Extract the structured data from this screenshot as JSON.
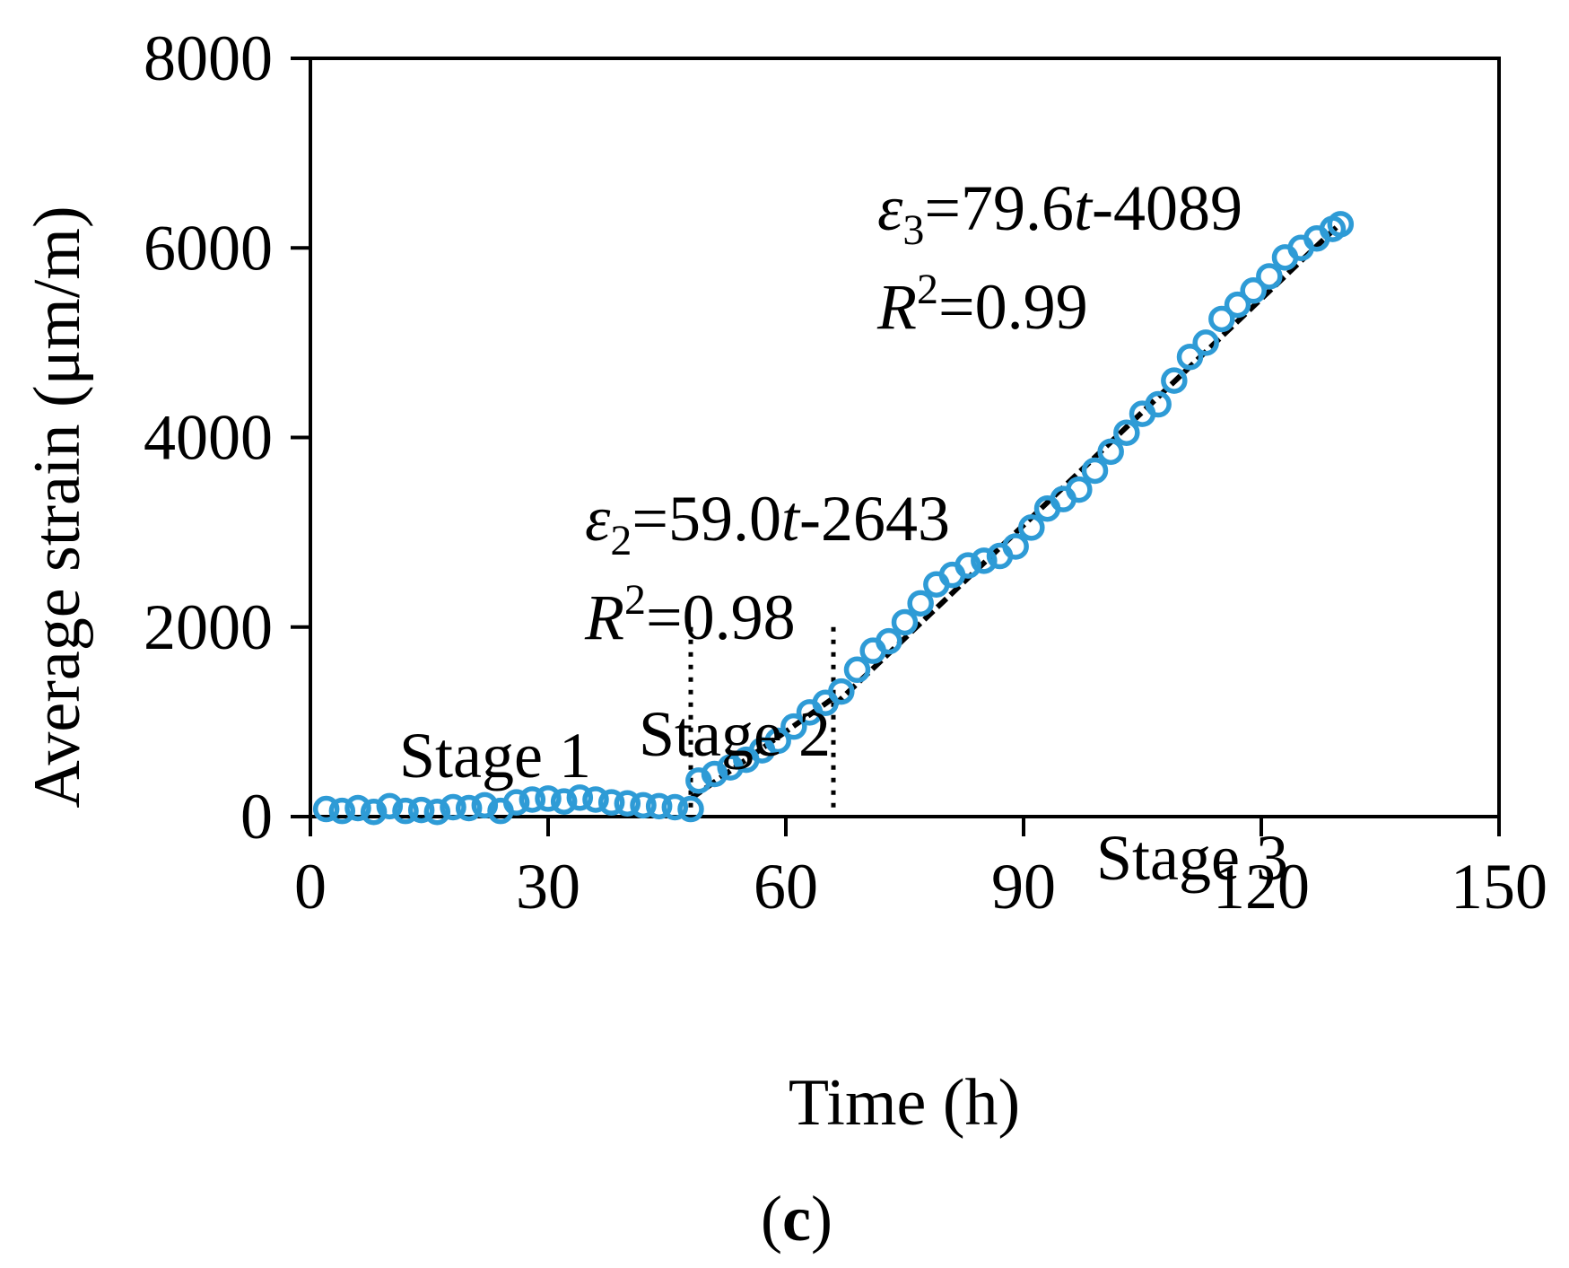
{
  "chart_data": {
    "type": "scatter",
    "xlabel": "Time (h)",
    "ylabel": "Average strain (μm/m)",
    "xlim": [
      0,
      150
    ],
    "ylim": [
      0,
      8000
    ],
    "xticks": [
      0,
      30,
      60,
      90,
      120,
      150
    ],
    "yticks": [
      0,
      2000,
      4000,
      6000,
      8000
    ],
    "grid": false,
    "marker_color": "#2e9bd6",
    "fit_line_color": "#000000",
    "stage_boundaries": [
      48,
      66
    ],
    "stage_labels": [
      "Stage 1",
      "Stage 2",
      "Stage 3"
    ],
    "equations": [
      {
        "symbol": "ε",
        "sub": "2",
        "rhs_a": "=59.0",
        "var": "t",
        "rhs_b": "-2643",
        "r_label": "R",
        "r_sup": "2",
        "r_value": "=0.98"
      },
      {
        "symbol": "ε",
        "sub": "3",
        "rhs_a": "=79.6",
        "var": "t",
        "rhs_b": "-4089",
        "r_label": "R",
        "r_sup": "2",
        "r_value": "=0.99"
      }
    ],
    "fits": [
      {
        "slope": 59.0,
        "intercept": -2643,
        "x_range": [
          48,
          66
        ]
      },
      {
        "slope": 79.6,
        "intercept": -4089,
        "x_range": [
          66,
          130
        ]
      }
    ],
    "points": {
      "x": [
        2,
        4,
        6,
        8,
        10,
        12,
        14,
        16,
        18,
        20,
        22,
        24,
        26,
        28,
        30,
        32,
        34,
        36,
        38,
        40,
        42,
        44,
        46,
        48,
        49,
        51,
        53,
        55,
        57,
        59,
        61,
        63,
        65,
        67,
        69,
        71,
        73,
        75,
        77,
        79,
        81,
        83,
        85,
        87,
        89,
        91,
        93,
        95,
        97,
        99,
        101,
        103,
        105,
        107,
        109,
        111,
        113,
        115,
        117,
        119,
        121,
        123,
        125,
        127,
        129,
        130
      ],
      "y": [
        80,
        60,
        90,
        50,
        110,
        60,
        70,
        50,
        100,
        90,
        120,
        60,
        150,
        180,
        190,
        160,
        200,
        180,
        150,
        140,
        120,
        110,
        100,
        80,
        380,
        450,
        520,
        600,
        700,
        800,
        950,
        1100,
        1200,
        1320,
        1550,
        1750,
        1850,
        2050,
        2250,
        2450,
        2550,
        2650,
        2700,
        2750,
        2850,
        3050,
        3250,
        3350,
        3450,
        3650,
        3850,
        4050,
        4250,
        4350,
        4600,
        4850,
        5000,
        5250,
        5400,
        5550,
        5700,
        5900,
        6000,
        6100,
        6200,
        6250
      ]
    },
    "caption": {
      "open": "(",
      "letter": "c",
      "close": ")"
    }
  }
}
